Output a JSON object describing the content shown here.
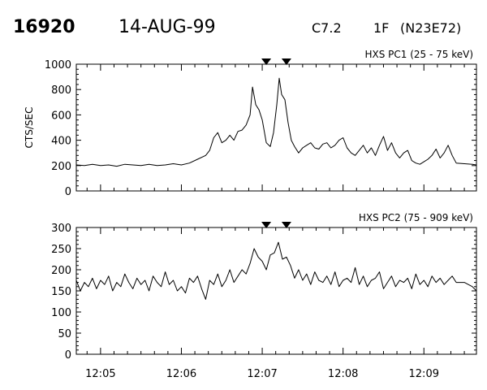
{
  "header": {
    "event_id": "16920",
    "date": "14-AUG-99",
    "goes_class": "C7.2",
    "optical_class": "1F",
    "location": "(N23E72)"
  },
  "colors": {
    "ink": "#000000",
    "background": "#ffffff"
  },
  "chart_data": [
    {
      "type": "line",
      "title": "HXS PC1 (25 - 75 keV)",
      "ylabel": "CTS/SEC",
      "xlabel": "",
      "ylim": [
        0,
        1000
      ],
      "yticks": [
        "0",
        "200",
        "400",
        "600",
        "800",
        "1000"
      ],
      "xlim_min": [
        4.7,
        9.65
      ],
      "xticks": [
        "12:05",
        "12:06",
        "12:07",
        "12:08",
        "12:09"
      ],
      "xtick_values_min": [
        5,
        6,
        7,
        8,
        9
      ],
      "markers_min": [
        7.05,
        7.3
      ],
      "series": [
        {
          "x": [
            4.7,
            4.8,
            4.9,
            5.0,
            5.1,
            5.2,
            5.3,
            5.4,
            5.5,
            5.6,
            5.7,
            5.8,
            5.9,
            6.0,
            6.1,
            6.2,
            6.3,
            6.35,
            6.4,
            6.45,
            6.5,
            6.55,
            6.6,
            6.65,
            6.7,
            6.75,
            6.8,
            6.85,
            6.88,
            6.92,
            6.96,
            7.0,
            7.05,
            7.1,
            7.14,
            7.18,
            7.21,
            7.24,
            7.28,
            7.32,
            7.36,
            7.4,
            7.45,
            7.5,
            7.55,
            7.6,
            7.65,
            7.7,
            7.75,
            7.8,
            7.85,
            7.9,
            7.95,
            8.0,
            8.05,
            8.1,
            8.15,
            8.2,
            8.25,
            8.3,
            8.35,
            8.4,
            8.45,
            8.5,
            8.55,
            8.6,
            8.65,
            8.7,
            8.75,
            8.8,
            8.85,
            8.9,
            8.95,
            9.0,
            9.05,
            9.1,
            9.15,
            9.2,
            9.25,
            9.3,
            9.35,
            9.4,
            9.5,
            9.6,
            9.65
          ],
          "y": [
            205,
            200,
            210,
            200,
            205,
            195,
            210,
            205,
            200,
            210,
            200,
            205,
            215,
            205,
            220,
            250,
            280,
            320,
            420,
            460,
            380,
            400,
            440,
            400,
            470,
            480,
            520,
            600,
            820,
            680,
            640,
            560,
            380,
            350,
            460,
            680,
            890,
            760,
            720,
            540,
            400,
            350,
            300,
            340,
            360,
            380,
            340,
            330,
            370,
            380,
            340,
            360,
            400,
            420,
            340,
            300,
            280,
            320,
            360,
            300,
            340,
            280,
            360,
            430,
            320,
            380,
            300,
            260,
            300,
            320,
            240,
            220,
            210,
            230,
            250,
            280,
            330,
            260,
            300,
            360,
            280,
            220,
            215,
            210,
            205
          ]
        }
      ]
    },
    {
      "type": "line",
      "title": "HXS PC2 (75 - 909 keV)",
      "ylabel": "",
      "xlabel": "",
      "ylim": [
        0,
        300
      ],
      "yticks": [
        "0",
        "50",
        "100",
        "150",
        "200",
        "250",
        "300"
      ],
      "xlim_min": [
        4.7,
        9.65
      ],
      "xticks": [
        "12:05",
        "12:06",
        "12:07",
        "12:08",
        "12:09"
      ],
      "xtick_values_min": [
        5,
        6,
        7,
        8,
        9
      ],
      "markers_min": [
        7.05,
        7.3
      ],
      "series": [
        {
          "x": [
            4.7,
            4.75,
            4.8,
            4.85,
            4.9,
            4.95,
            5.0,
            5.05,
            5.1,
            5.15,
            5.2,
            5.25,
            5.3,
            5.35,
            5.4,
            5.45,
            5.5,
            5.55,
            5.6,
            5.65,
            5.7,
            5.75,
            5.8,
            5.85,
            5.9,
            5.95,
            6.0,
            6.05,
            6.1,
            6.15,
            6.2,
            6.25,
            6.3,
            6.35,
            6.4,
            6.45,
            6.5,
            6.55,
            6.6,
            6.65,
            6.7,
            6.75,
            6.8,
            6.85,
            6.9,
            6.95,
            7.0,
            7.05,
            7.1,
            7.15,
            7.2,
            7.25,
            7.3,
            7.35,
            7.4,
            7.45,
            7.5,
            7.55,
            7.6,
            7.65,
            7.7,
            7.75,
            7.8,
            7.85,
            7.9,
            7.95,
            8.0,
            8.05,
            8.1,
            8.15,
            8.2,
            8.25,
            8.3,
            8.35,
            8.4,
            8.45,
            8.5,
            8.55,
            8.6,
            8.65,
            8.7,
            8.75,
            8.8,
            8.85,
            8.9,
            8.95,
            9.0,
            9.05,
            9.1,
            9.15,
            9.2,
            9.25,
            9.3,
            9.35,
            9.4,
            9.5,
            9.6,
            9.65
          ],
          "y": [
            175,
            150,
            170,
            160,
            180,
            155,
            175,
            165,
            185,
            150,
            170,
            160,
            190,
            170,
            155,
            180,
            165,
            175,
            150,
            185,
            170,
            160,
            195,
            165,
            175,
            150,
            160,
            145,
            180,
            170,
            185,
            155,
            130,
            175,
            165,
            190,
            160,
            175,
            200,
            170,
            185,
            200,
            190,
            215,
            250,
            230,
            220,
            200,
            235,
            240,
            265,
            225,
            230,
            210,
            180,
            200,
            175,
            190,
            165,
            195,
            175,
            170,
            185,
            165,
            195,
            160,
            175,
            180,
            170,
            205,
            165,
            185,
            160,
            175,
            180,
            195,
            155,
            170,
            185,
            160,
            175,
            170,
            180,
            155,
            190,
            165,
            175,
            160,
            185,
            170,
            180,
            165,
            175,
            185,
            170,
            170,
            160,
            150
          ]
        }
      ]
    }
  ]
}
